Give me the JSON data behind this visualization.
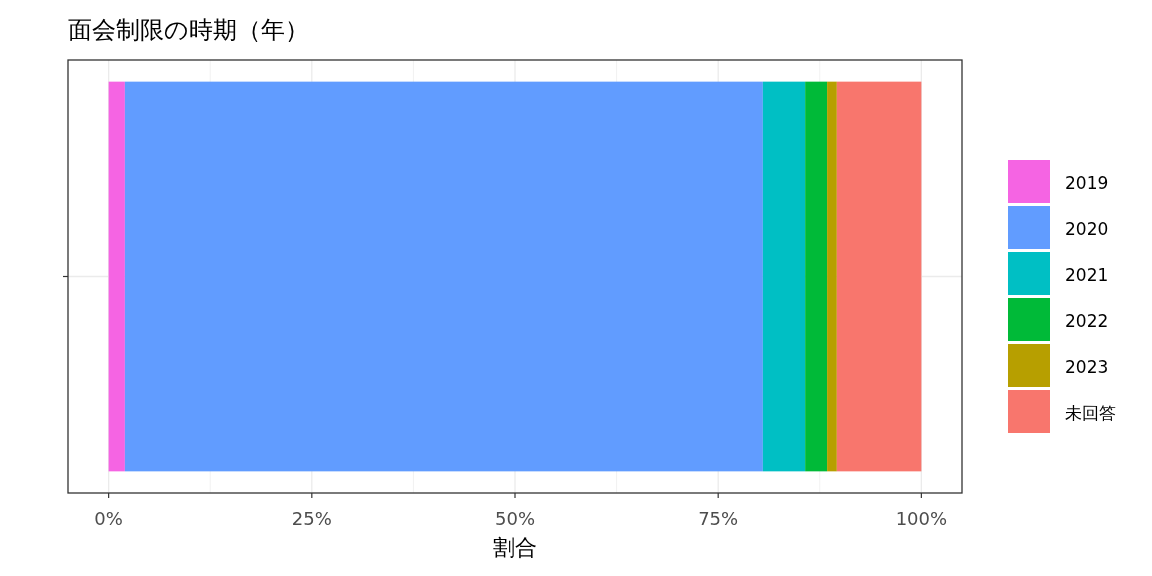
{
  "chart_data": {
    "type": "bar",
    "title": "面会制限の時期（年）",
    "xlabel": "割合",
    "orientation": "horizontal",
    "stacked": true,
    "categories": [
      null
    ],
    "series": [
      {
        "name": "2019",
        "color": "#f564e3",
        "values": [
          2.0
        ]
      },
      {
        "name": "2020",
        "color": "#619cff",
        "values": [
          78.5
        ]
      },
      {
        "name": "2021",
        "color": "#00bfc4",
        "values": [
          5.2
        ]
      },
      {
        "name": "2022",
        "color": "#00ba38",
        "values": [
          2.7
        ]
      },
      {
        "name": "2023",
        "color": "#b79f00",
        "values": [
          1.2
        ]
      },
      {
        "name": "未回答",
        "color": "#f8766d",
        "values": [
          10.4
        ]
      }
    ],
    "xlim": [
      -5,
      105
    ],
    "xticks": [
      {
        "value": 0,
        "label": "0%"
      },
      {
        "value": 25,
        "label": "25%"
      },
      {
        "value": 50,
        "label": "50%"
      },
      {
        "value": 75,
        "label": "75%"
      },
      {
        "value": 100,
        "label": "100%"
      }
    ],
    "grid": true,
    "legend": "right"
  }
}
